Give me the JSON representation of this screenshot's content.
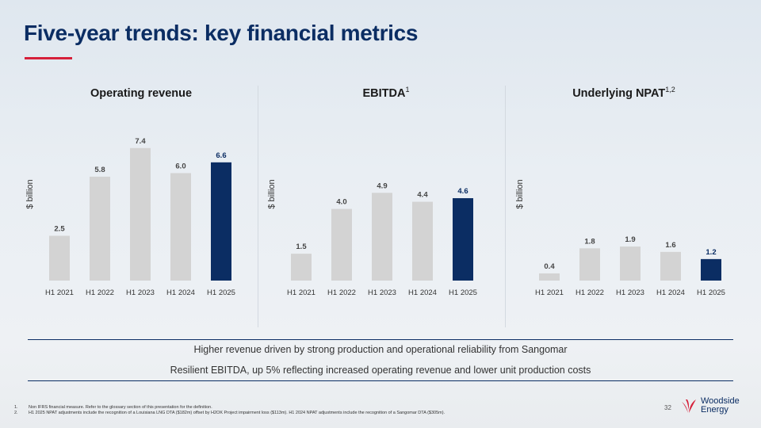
{
  "title": "Five-year trends: key financial metrics",
  "accent_color": "#d6203a",
  "highlight_color": "#0b2d63",
  "bar_color": "#d3d3d3",
  "chart_data": [
    {
      "type": "bar",
      "title": "Operating revenue",
      "title_sup": "",
      "ylabel": "$ billion",
      "categories": [
        "H1 2021",
        "H1 2022",
        "H1 2023",
        "H1 2024",
        "H1 2025"
      ],
      "values": [
        2.5,
        5.8,
        7.4,
        6.0,
        6.6
      ],
      "labels": [
        "2.5",
        "5.8",
        "7.4",
        "6.0",
        "6.6"
      ],
      "highlight_index": 4,
      "grid": false
    },
    {
      "type": "bar",
      "title": "EBITDA",
      "title_sup": "1",
      "ylabel": "$ billion",
      "categories": [
        "H1 2021",
        "H1 2022",
        "H1 2023",
        "H1 2024",
        "H1 2025"
      ],
      "values": [
        1.5,
        4.0,
        4.9,
        4.4,
        4.6
      ],
      "labels": [
        "1.5",
        "4.0",
        "4.9",
        "4.4",
        "4.6"
      ],
      "highlight_index": 4,
      "grid": false
    },
    {
      "type": "bar",
      "title": "Underlying NPAT",
      "title_sup": "1,2",
      "ylabel": "$ billion",
      "categories": [
        "H1 2021",
        "H1 2022",
        "H1 2023",
        "H1 2024",
        "H1 2025"
      ],
      "values": [
        0.4,
        1.8,
        1.9,
        1.6,
        1.2
      ],
      "labels": [
        "0.4",
        "1.8",
        "1.9",
        "1.6",
        "1.2"
      ],
      "highlight_index": 4,
      "grid": false
    }
  ],
  "notes": [
    "Higher revenue driven by strong production and operational reliability from Sangomar",
    "Resilient EBITDA, up 5% reflecting increased operating revenue and lower unit production costs"
  ],
  "footnotes": [
    {
      "num": "1.",
      "text": "Non IFRS financial measure. Refer to the glossary section of this presentation for the definition."
    },
    {
      "num": "2.",
      "text": "H1 2025 NPAT adjustments include the recognition of a Louisiana LNG DTA ($182m) offset by H2OK Project impairment loss ($113m). H1 2024 NPAT adjustments include the recognition of a Sangomar DTA ($305m)."
    }
  ],
  "page_number": "32",
  "logo": {
    "line1": "Woodside",
    "line2": "Energy"
  }
}
